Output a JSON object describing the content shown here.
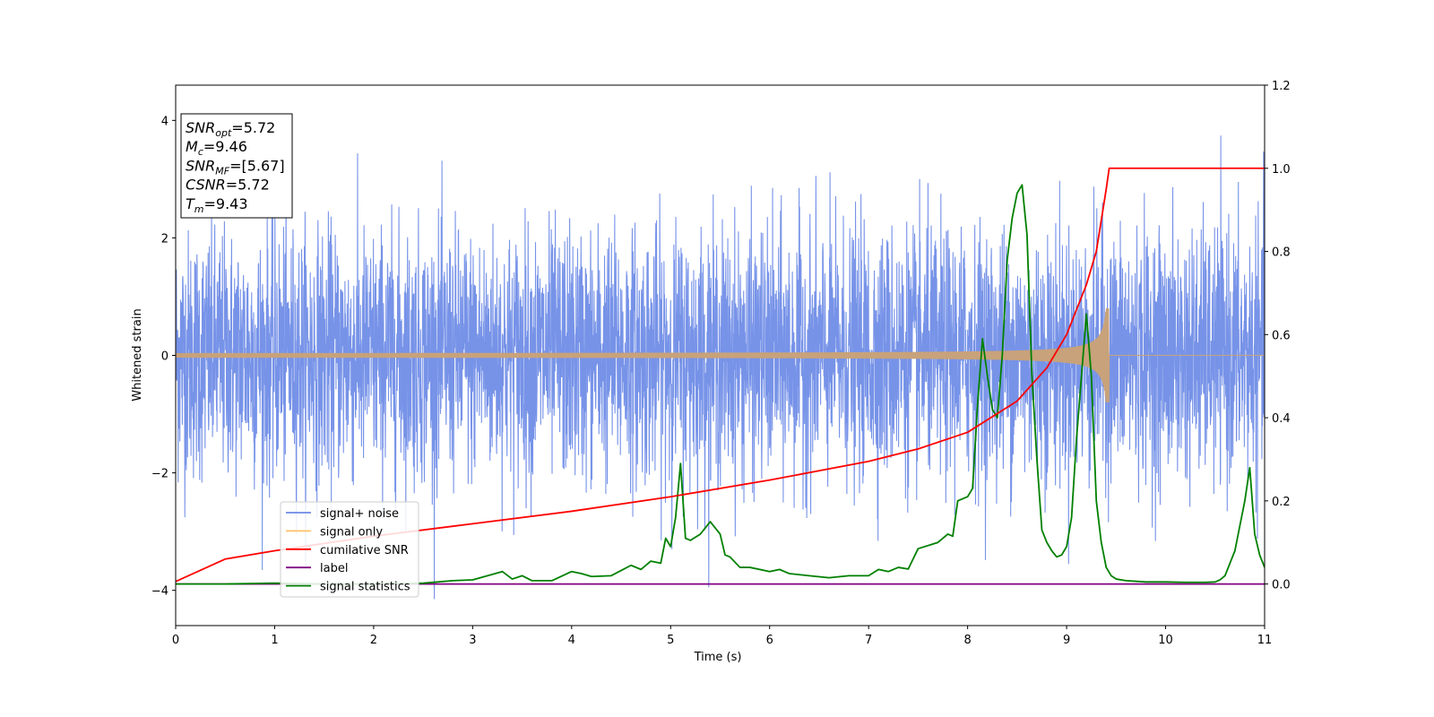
{
  "chart_data": {
    "type": "line",
    "xlabel": "Time (s)",
    "ylabel": "Whitened strain",
    "xlim": [
      0,
      11
    ],
    "ylim_left": [
      -4.6,
      4.6
    ],
    "ylim_right": [
      -0.1,
      1.2
    ],
    "x_ticks": [
      "0",
      "1",
      "2",
      "3",
      "4",
      "5",
      "6",
      "7",
      "8",
      "9",
      "10",
      "11"
    ],
    "y_ticks_left": [
      "−4",
      "−2",
      "0",
      "2",
      "4"
    ],
    "y_ticks_right": [
      "0.0",
      "0.2",
      "0.4",
      "0.6",
      "0.8",
      "1.0",
      "1.2"
    ],
    "info_box": [
      {
        "base": "SNR",
        "sub": "opt",
        "rest": "=5.72"
      },
      {
        "base": "M",
        "sub": "c",
        "rest": "=9.46"
      },
      {
        "base": "SNR",
        "sub": "MF",
        "rest": "=[5.67]"
      },
      {
        "base": "CSNR",
        "sub": "",
        "rest": "=5.72"
      },
      {
        "base": "T",
        "sub": "m",
        "rest": "=9.43"
      }
    ],
    "legend": [
      {
        "label": "signal+ noise",
        "color": "#6b8ae6"
      },
      {
        "label": "signal only",
        "color": "#ffc266"
      },
      {
        "label": "cumilative SNR",
        "color": "#ff0000"
      },
      {
        "label": "label",
        "color": "#800080"
      },
      {
        "label": "signal statistics",
        "color": "#008000"
      }
    ],
    "series": [
      {
        "name": "signal+ noise",
        "axis": "left",
        "color": "#6b8ae6",
        "description": "whitened noise, roughly Gaussian, sd ≈ 1, range about −4.2 to 4.2, spanning 0–11 s"
      },
      {
        "name": "signal only",
        "axis": "left",
        "color": "#c8a27a",
        "chirp": {
          "t_merge": 9.43,
          "peak_amplitude": 0.8,
          "start_amplitude": 0.03
        }
      },
      {
        "name": "cumilative SNR",
        "axis": "right",
        "color": "#ff0000",
        "x": [
          0,
          0.5,
          1,
          2,
          3,
          4,
          5,
          6,
          7,
          7.5,
          8,
          8.5,
          8.8,
          9.0,
          9.2,
          9.3,
          9.4,
          9.43,
          11
        ],
        "y": [
          0.006,
          0.06,
          0.08,
          0.115,
          0.145,
          0.175,
          0.21,
          0.25,
          0.295,
          0.325,
          0.365,
          0.44,
          0.52,
          0.6,
          0.72,
          0.8,
          0.95,
          1.0,
          1.0
        ]
      },
      {
        "name": "label",
        "axis": "right",
        "color": "#800080",
        "x": [
          0,
          11
        ],
        "y": [
          0,
          0
        ]
      },
      {
        "name": "signal statistics",
        "axis": "right",
        "color": "#008000",
        "x": [
          0,
          0.5,
          1.0,
          1.5,
          2.0,
          2.5,
          2.8,
          3.0,
          3.3,
          3.4,
          3.5,
          3.6,
          3.8,
          4.0,
          4.1,
          4.2,
          4.4,
          4.6,
          4.7,
          4.8,
          4.9,
          4.95,
          5.0,
          5.05,
          5.1,
          5.15,
          5.2,
          5.3,
          5.4,
          5.5,
          5.55,
          5.6,
          5.7,
          5.8,
          6.0,
          6.1,
          6.2,
          6.4,
          6.6,
          6.8,
          7.0,
          7.1,
          7.2,
          7.3,
          7.4,
          7.5,
          7.7,
          7.8,
          7.85,
          7.9,
          8.0,
          8.05,
          8.1,
          8.15,
          8.2,
          8.25,
          8.3,
          8.35,
          8.4,
          8.45,
          8.5,
          8.55,
          8.6,
          8.65,
          8.7,
          8.75,
          8.8,
          8.85,
          8.9,
          8.95,
          9.0,
          9.05,
          9.1,
          9.15,
          9.2,
          9.25,
          9.3,
          9.35,
          9.4,
          9.45,
          9.5,
          9.6,
          9.8,
          10.0,
          10.2,
          10.4,
          10.5,
          10.55,
          10.6,
          10.7,
          10.8,
          10.85,
          10.9,
          10.95,
          11.0
        ],
        "y": [
          0.0,
          0.0,
          0.002,
          0.0,
          0.0,
          0.002,
          0.008,
          0.01,
          0.03,
          0.012,
          0.02,
          0.008,
          0.008,
          0.03,
          0.025,
          0.018,
          0.02,
          0.045,
          0.035,
          0.055,
          0.05,
          0.11,
          0.09,
          0.16,
          0.29,
          0.11,
          0.105,
          0.12,
          0.15,
          0.12,
          0.07,
          0.065,
          0.04,
          0.04,
          0.03,
          0.035,
          0.025,
          0.02,
          0.015,
          0.02,
          0.02,
          0.035,
          0.03,
          0.04,
          0.036,
          0.085,
          0.1,
          0.12,
          0.115,
          0.2,
          0.21,
          0.23,
          0.43,
          0.59,
          0.5,
          0.42,
          0.4,
          0.55,
          0.78,
          0.88,
          0.94,
          0.96,
          0.84,
          0.5,
          0.3,
          0.13,
          0.1,
          0.08,
          0.065,
          0.07,
          0.09,
          0.16,
          0.35,
          0.5,
          0.65,
          0.5,
          0.2,
          0.1,
          0.04,
          0.02,
          0.012,
          0.008,
          0.005,
          0.005,
          0.004,
          0.004,
          0.005,
          0.01,
          0.02,
          0.08,
          0.2,
          0.28,
          0.12,
          0.07,
          0.04
        ]
      }
    ]
  }
}
